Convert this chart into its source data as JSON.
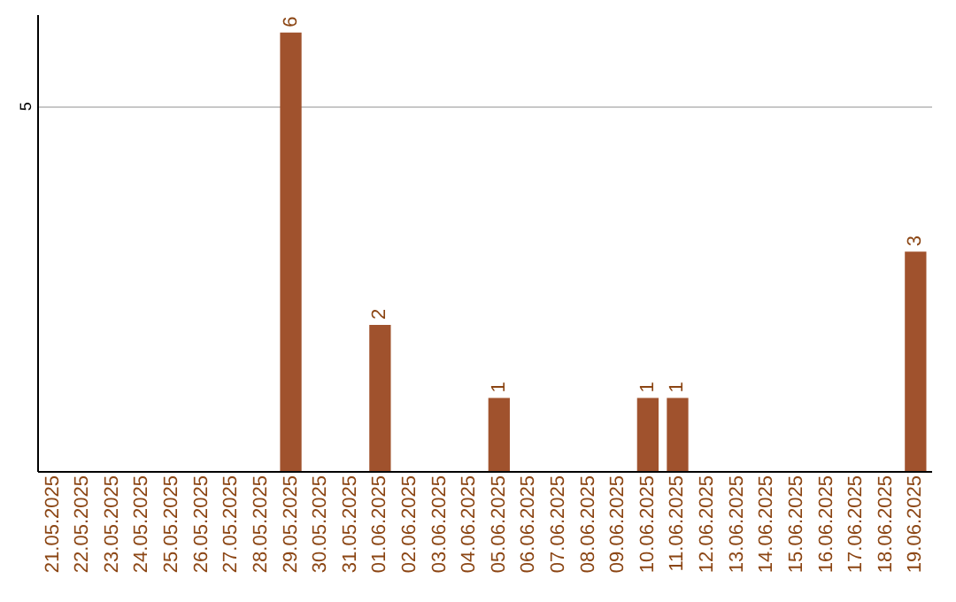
{
  "chart_data": {
    "type": "bar",
    "categories": [
      "21.05.2025",
      "22.05.2025",
      "23.05.2025",
      "24.05.2025",
      "25.05.2025",
      "26.05.2025",
      "27.05.2025",
      "28.05.2025",
      "29.05.2025",
      "30.05.2025",
      "31.05.2025",
      "01.06.2025",
      "02.06.2025",
      "03.06.2025",
      "04.06.2025",
      "05.06.2025",
      "06.06.2025",
      "07.06.2025",
      "08.06.2025",
      "09.06.2025",
      "10.06.2025",
      "11.06.2025",
      "12.06.2025",
      "13.06.2025",
      "14.06.2025",
      "15.06.2025",
      "16.06.2025",
      "17.06.2025",
      "18.06.2025",
      "19.06.2025"
    ],
    "values": [
      0,
      0,
      0,
      0,
      0,
      0,
      0,
      0,
      6,
      0,
      0,
      2,
      0,
      0,
      0,
      1,
      0,
      0,
      0,
      0,
      1,
      1,
      0,
      0,
      0,
      0,
      0,
      0,
      0,
      3
    ],
    "value_labels": [
      null,
      null,
      null,
      null,
      null,
      null,
      null,
      null,
      "6",
      null,
      null,
      "2",
      null,
      null,
      null,
      "1",
      null,
      null,
      null,
      null,
      "1",
      "1",
      null,
      null,
      null,
      null,
      null,
      null,
      null,
      "3"
    ],
    "color": "#a0522d",
    "ylim": [
      0,
      6.25
    ],
    "yticks": [
      5
    ],
    "grid": "y"
  }
}
